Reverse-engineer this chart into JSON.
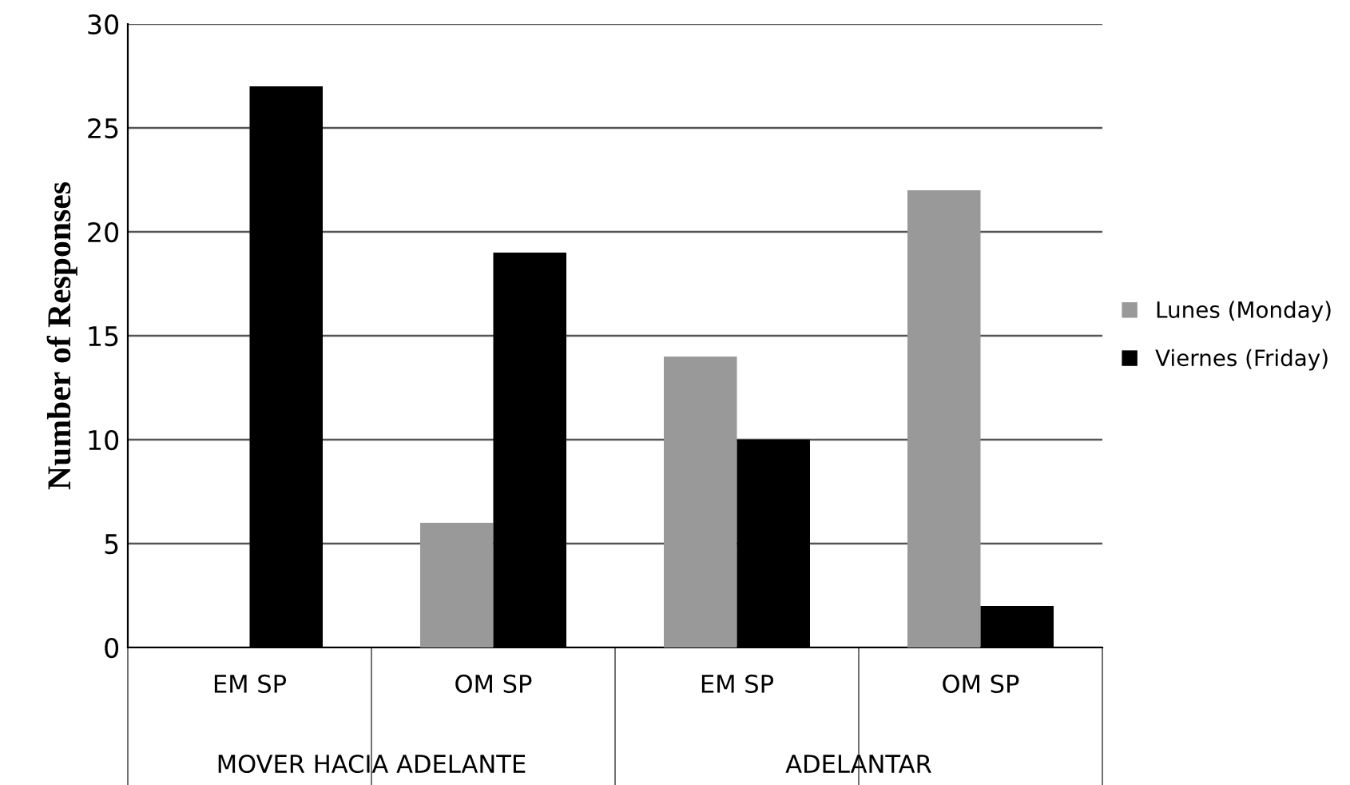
{
  "chart_data": {
    "type": "bar",
    "ylabel": "Number of Responses",
    "categories": [
      "EM SP",
      "OM SP",
      "EM SP",
      "OM SP"
    ],
    "series": [
      {
        "name": "Lunes (Monday)",
        "color": "#999999",
        "values": [
          0,
          6,
          14,
          22
        ]
      },
      {
        "name": "Viernes (Friday)",
        "color": "#000000",
        "values": [
          27,
          19,
          10,
          2
        ]
      }
    ],
    "annotations": [
      "MOVER HACIA ADELANTE",
      "ADELANTAR"
    ],
    "ylim": [
      0,
      30
    ],
    "yticks": [
      0,
      5,
      10,
      15,
      20,
      25,
      30
    ],
    "grid": "y",
    "legend": "right"
  }
}
